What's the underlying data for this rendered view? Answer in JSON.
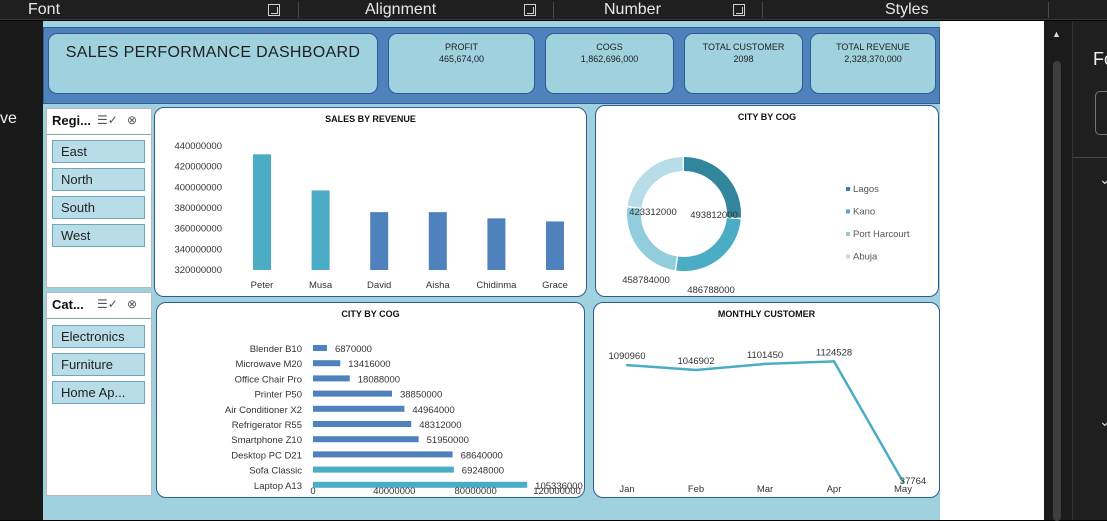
{
  "ribbon": {
    "groups": [
      "Font",
      "Alignment",
      "Number",
      "Styles"
    ]
  },
  "edge": {
    "left_text": "ve",
    "right_text": "Fo"
  },
  "dashboard": {
    "title": "SALES PERFORMANCE DASHBOARD",
    "kpis": [
      {
        "label": "PROFIT",
        "value": "465,674,00"
      },
      {
        "label": "COGS",
        "value": "1,862,696,000"
      },
      {
        "label": "TOTAL CUSTOMER",
        "value": "2098"
      },
      {
        "label": "TOTAL REVENUE",
        "value": "2,328,370,000"
      }
    ]
  },
  "slicers": {
    "region": {
      "title": "Regi...",
      "items": [
        "East",
        "North",
        "South",
        "West"
      ]
    },
    "category": {
      "title": "Cat...",
      "items": [
        "Electronics",
        "Furniture",
        "Home Ap..."
      ]
    }
  },
  "chart_data": [
    {
      "type": "bar",
      "title": "SALES BY REVENUE",
      "categories": [
        "Peter",
        "Musa",
        "David",
        "Aisha",
        "Chidinma",
        "Grace"
      ],
      "values": [
        432000000,
        397000000,
        376000000,
        376000000,
        370000000,
        367000000
      ],
      "ylim": [
        320000000,
        440000000
      ],
      "yticks": [
        "440000000",
        "420000000",
        "400000000",
        "380000000",
        "360000000",
        "340000000",
        "320000000"
      ],
      "colors": [
        "#4bacc6",
        "#4bacc6",
        "#4f81bd",
        "#4f81bd",
        "#4f81bd",
        "#4f81bd"
      ]
    },
    {
      "type": "pie",
      "title": "CITY BY COG",
      "labels": [
        "Lagos",
        "Kano",
        "Port Harcourt",
        "Abuja"
      ],
      "values": [
        493812000,
        486788000,
        458784000,
        423312000
      ],
      "value_labels": [
        "493812000",
        "486788000",
        "458784000",
        "423312000"
      ],
      "colors": [
        "#31859c",
        "#4bacc6",
        "#92cddc",
        "#b7dde8"
      ],
      "legend": "right"
    },
    {
      "type": "bar",
      "orientation": "horizontal",
      "title": "CITY BY COG",
      "categories": [
        "Blender B10",
        "Microwave M20",
        "Office Chair Pro",
        "Printer P50",
        "Air Conditioner X2",
        "Refrigerator R55",
        "Smartphone Z10",
        "Desktop PC D21",
        "Sofa Classic",
        "Laptop A13"
      ],
      "values": [
        6870000,
        13416000,
        18088000,
        38850000,
        44964000,
        48312000,
        51950000,
        68640000,
        69248000,
        105336000
      ],
      "value_labels": [
        "6870000",
        "13416000",
        "18088000",
        "38850000",
        "44964000",
        "48312000",
        "51950000",
        "68640000",
        "69248000",
        "105336000"
      ],
      "xlim": [
        0,
        120000000
      ],
      "xticks": [
        "0",
        "40000000",
        "80000000",
        "120000000"
      ],
      "colors": [
        "#4f81bd",
        "#4f81bd",
        "#4f81bd",
        "#4f81bd",
        "#4f81bd",
        "#4f81bd",
        "#4f81bd",
        "#4f81bd",
        "#4bacc6",
        "#4bacc6"
      ]
    },
    {
      "type": "line",
      "title": "MONTHLY CUSTOMER",
      "categories": [
        "Jan",
        "Feb",
        "Mar",
        "Apr",
        "May"
      ],
      "values": [
        1090960,
        1046902,
        1101450,
        1124528,
        37764
      ],
      "value_labels": [
        "1090960",
        "1046902",
        "1101450",
        "1124528",
        "37764"
      ],
      "color": "#4bacc6"
    }
  ]
}
